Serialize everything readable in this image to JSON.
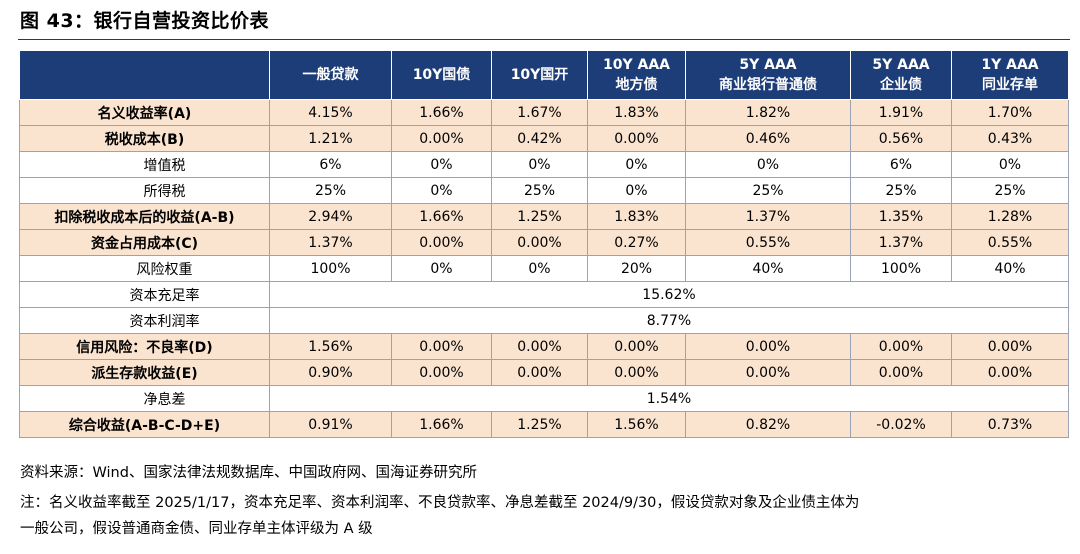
{
  "title": "图 43：银行自营投资比价表",
  "table": {
    "headers": [
      {
        "line1": "一般贷款",
        "line2": ""
      },
      {
        "line1": "10Y国债",
        "line2": ""
      },
      {
        "line1": "10Y国开",
        "line2": ""
      },
      {
        "line1": "10Y AAA",
        "line2": "地方债"
      },
      {
        "line1": "5Y AAA",
        "line2": "商业银行普通债"
      },
      {
        "line1": "5Y AAA",
        "line2": "企业债"
      },
      {
        "line1": "1Y AAA",
        "line2": "同业存单"
      }
    ],
    "rows": [
      {
        "label": "名义收益率(A)",
        "type": "main",
        "values": [
          "4.15%",
          "1.66%",
          "1.67%",
          "1.83%",
          "1.82%",
          "1.91%",
          "1.70%"
        ]
      },
      {
        "label": "税收成本(B)",
        "type": "main",
        "values": [
          "1.21%",
          "0.00%",
          "0.42%",
          "0.00%",
          "0.46%",
          "0.56%",
          "0.43%"
        ]
      },
      {
        "label": "增值税",
        "type": "sub",
        "values": [
          "6%",
          "0%",
          "0%",
          "0%",
          "0%",
          "6%",
          "0%"
        ]
      },
      {
        "label": "所得税",
        "type": "sub",
        "values": [
          "25%",
          "0%",
          "25%",
          "0%",
          "25%",
          "25%",
          "25%"
        ]
      },
      {
        "label": "扣除税收成本后的收益(A-B)",
        "type": "main",
        "values": [
          "2.94%",
          "1.66%",
          "1.25%",
          "1.83%",
          "1.37%",
          "1.35%",
          "1.28%"
        ]
      },
      {
        "label": "资金占用成本(C)",
        "type": "main",
        "values": [
          "1.37%",
          "0.00%",
          "0.00%",
          "0.27%",
          "0.55%",
          "1.37%",
          "0.55%"
        ]
      },
      {
        "label": "风险权重",
        "type": "sub",
        "values": [
          "100%",
          "0%",
          "0%",
          "20%",
          "40%",
          "100%",
          "40%"
        ]
      },
      {
        "label": "资本充足率",
        "type": "span",
        "value": "15.62%"
      },
      {
        "label": "资本利润率",
        "type": "span",
        "value": "8.77%"
      },
      {
        "label": "信用风险：不良率(D)",
        "type": "main",
        "values": [
          "1.56%",
          "0.00%",
          "0.00%",
          "0.00%",
          "0.00%",
          "0.00%",
          "0.00%"
        ]
      },
      {
        "label": "派生存款收益(E)",
        "type": "main",
        "values": [
          "0.90%",
          "0.00%",
          "0.00%",
          "0.00%",
          "0.00%",
          "0.00%",
          "0.00%"
        ]
      },
      {
        "label": "净息差",
        "type": "span",
        "value": "1.54%"
      },
      {
        "label": "综合收益(A-B-C-D+E)",
        "type": "main",
        "values": [
          "0.91%",
          "1.66%",
          "1.25%",
          "1.56%",
          "0.82%",
          "-0.02%",
          "0.73%"
        ]
      }
    ]
  },
  "source": "资料来源：Wind、国家法律法规数据库、中国政府网、国海证券研究所",
  "note_line1": "注：名义收益率截至 2025/1/17，资本充足率、资本利润率、不良贷款率、净息差截至 2024/9/30，假设贷款对象及企业债主体为",
  "note_line2": "一般公司，假设普通商金债、同业存单主体评级为 A 级"
}
